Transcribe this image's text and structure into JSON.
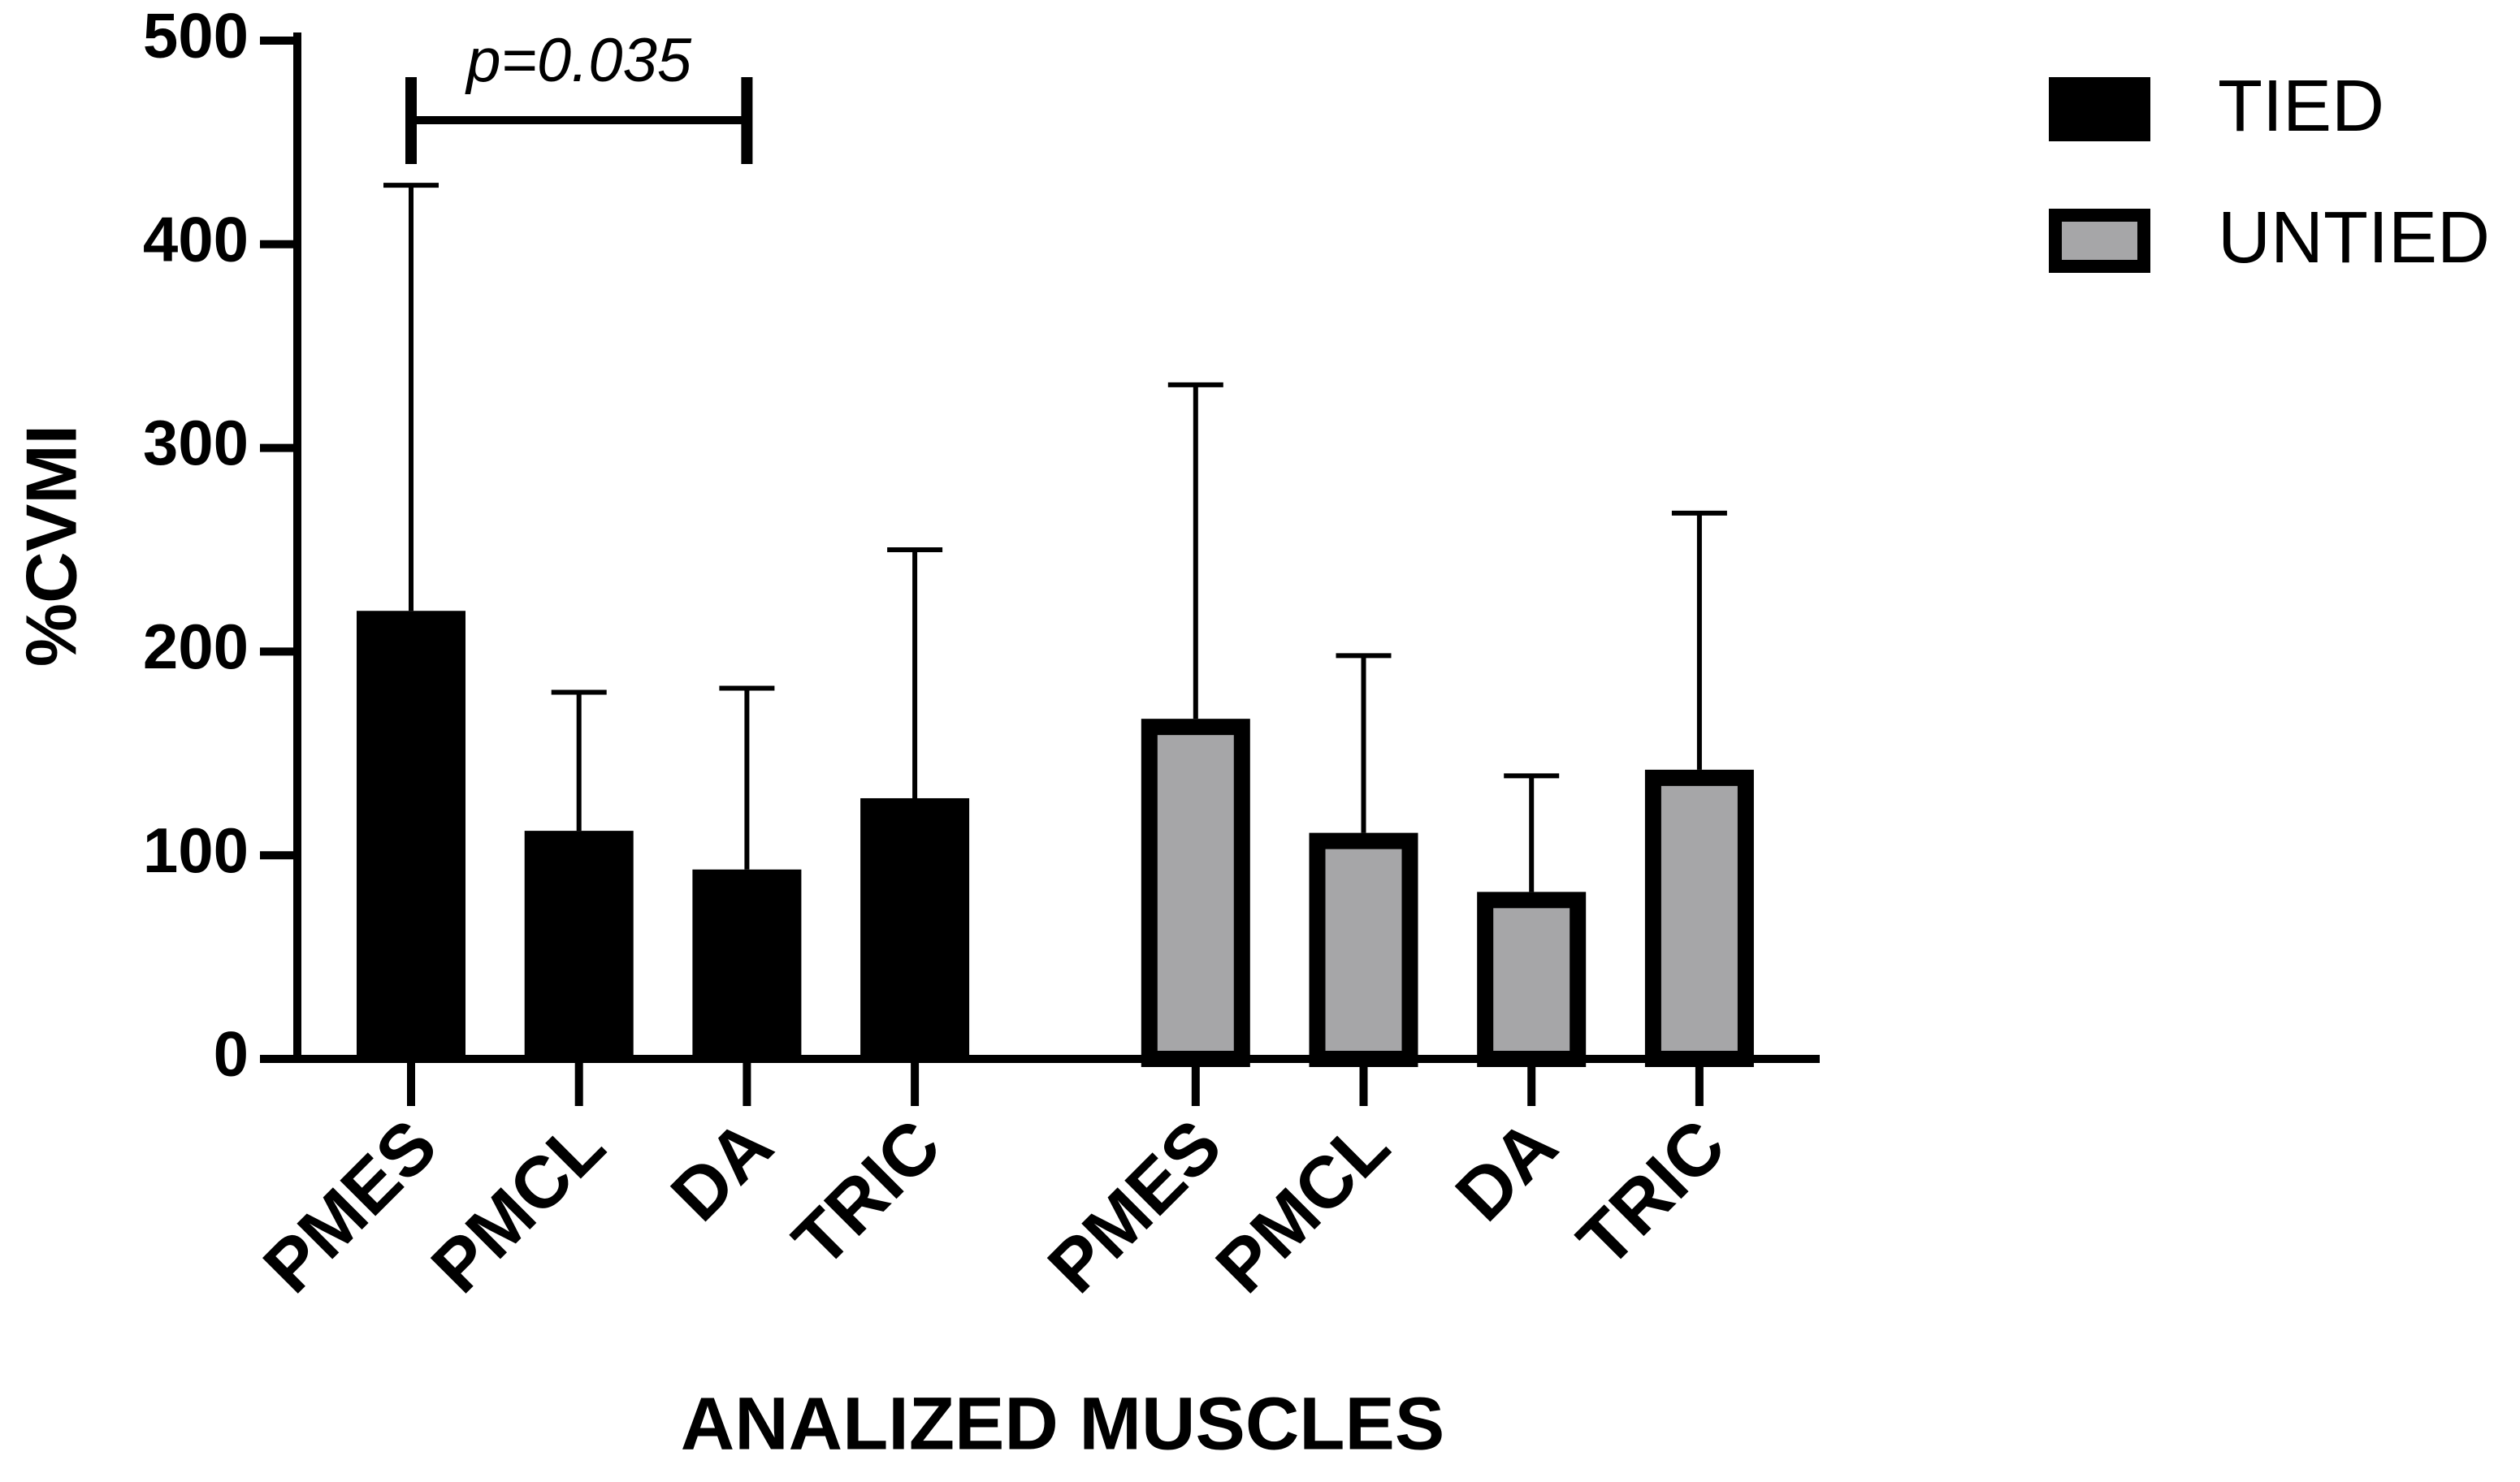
{
  "chart_data": {
    "type": "bar",
    "ylabel": "%CVMI",
    "xlabel": "ANALIZED MUSCLES",
    "categories": [
      "PMES",
      "PMCL",
      "DA",
      "TRIC",
      "PMES",
      "PMCL",
      "DA",
      "TRIC"
    ],
    "series": [
      {
        "name": "TIED",
        "color": "#000000",
        "edgecolor": "#000000",
        "values": [
          220,
          112,
          93,
          128,
          null,
          null,
          null,
          null
        ],
        "errors": [
          209,
          68,
          89,
          122,
          null,
          null,
          null,
          null
        ]
      },
      {
        "name": "UNTIED",
        "color": "#a6a6a8",
        "edgecolor": "#000000",
        "values": [
          null,
          null,
          null,
          null,
          167,
          111,
          82,
          142
        ],
        "errors": [
          null,
          null,
          null,
          null,
          164,
          87,
          57,
          126
        ]
      }
    ],
    "ylim": [
      0,
      500
    ],
    "yticks": [
      0,
      100,
      200,
      300,
      400,
      500
    ],
    "annotation": "p=0.035",
    "legend": "upper right",
    "grid": false
  }
}
